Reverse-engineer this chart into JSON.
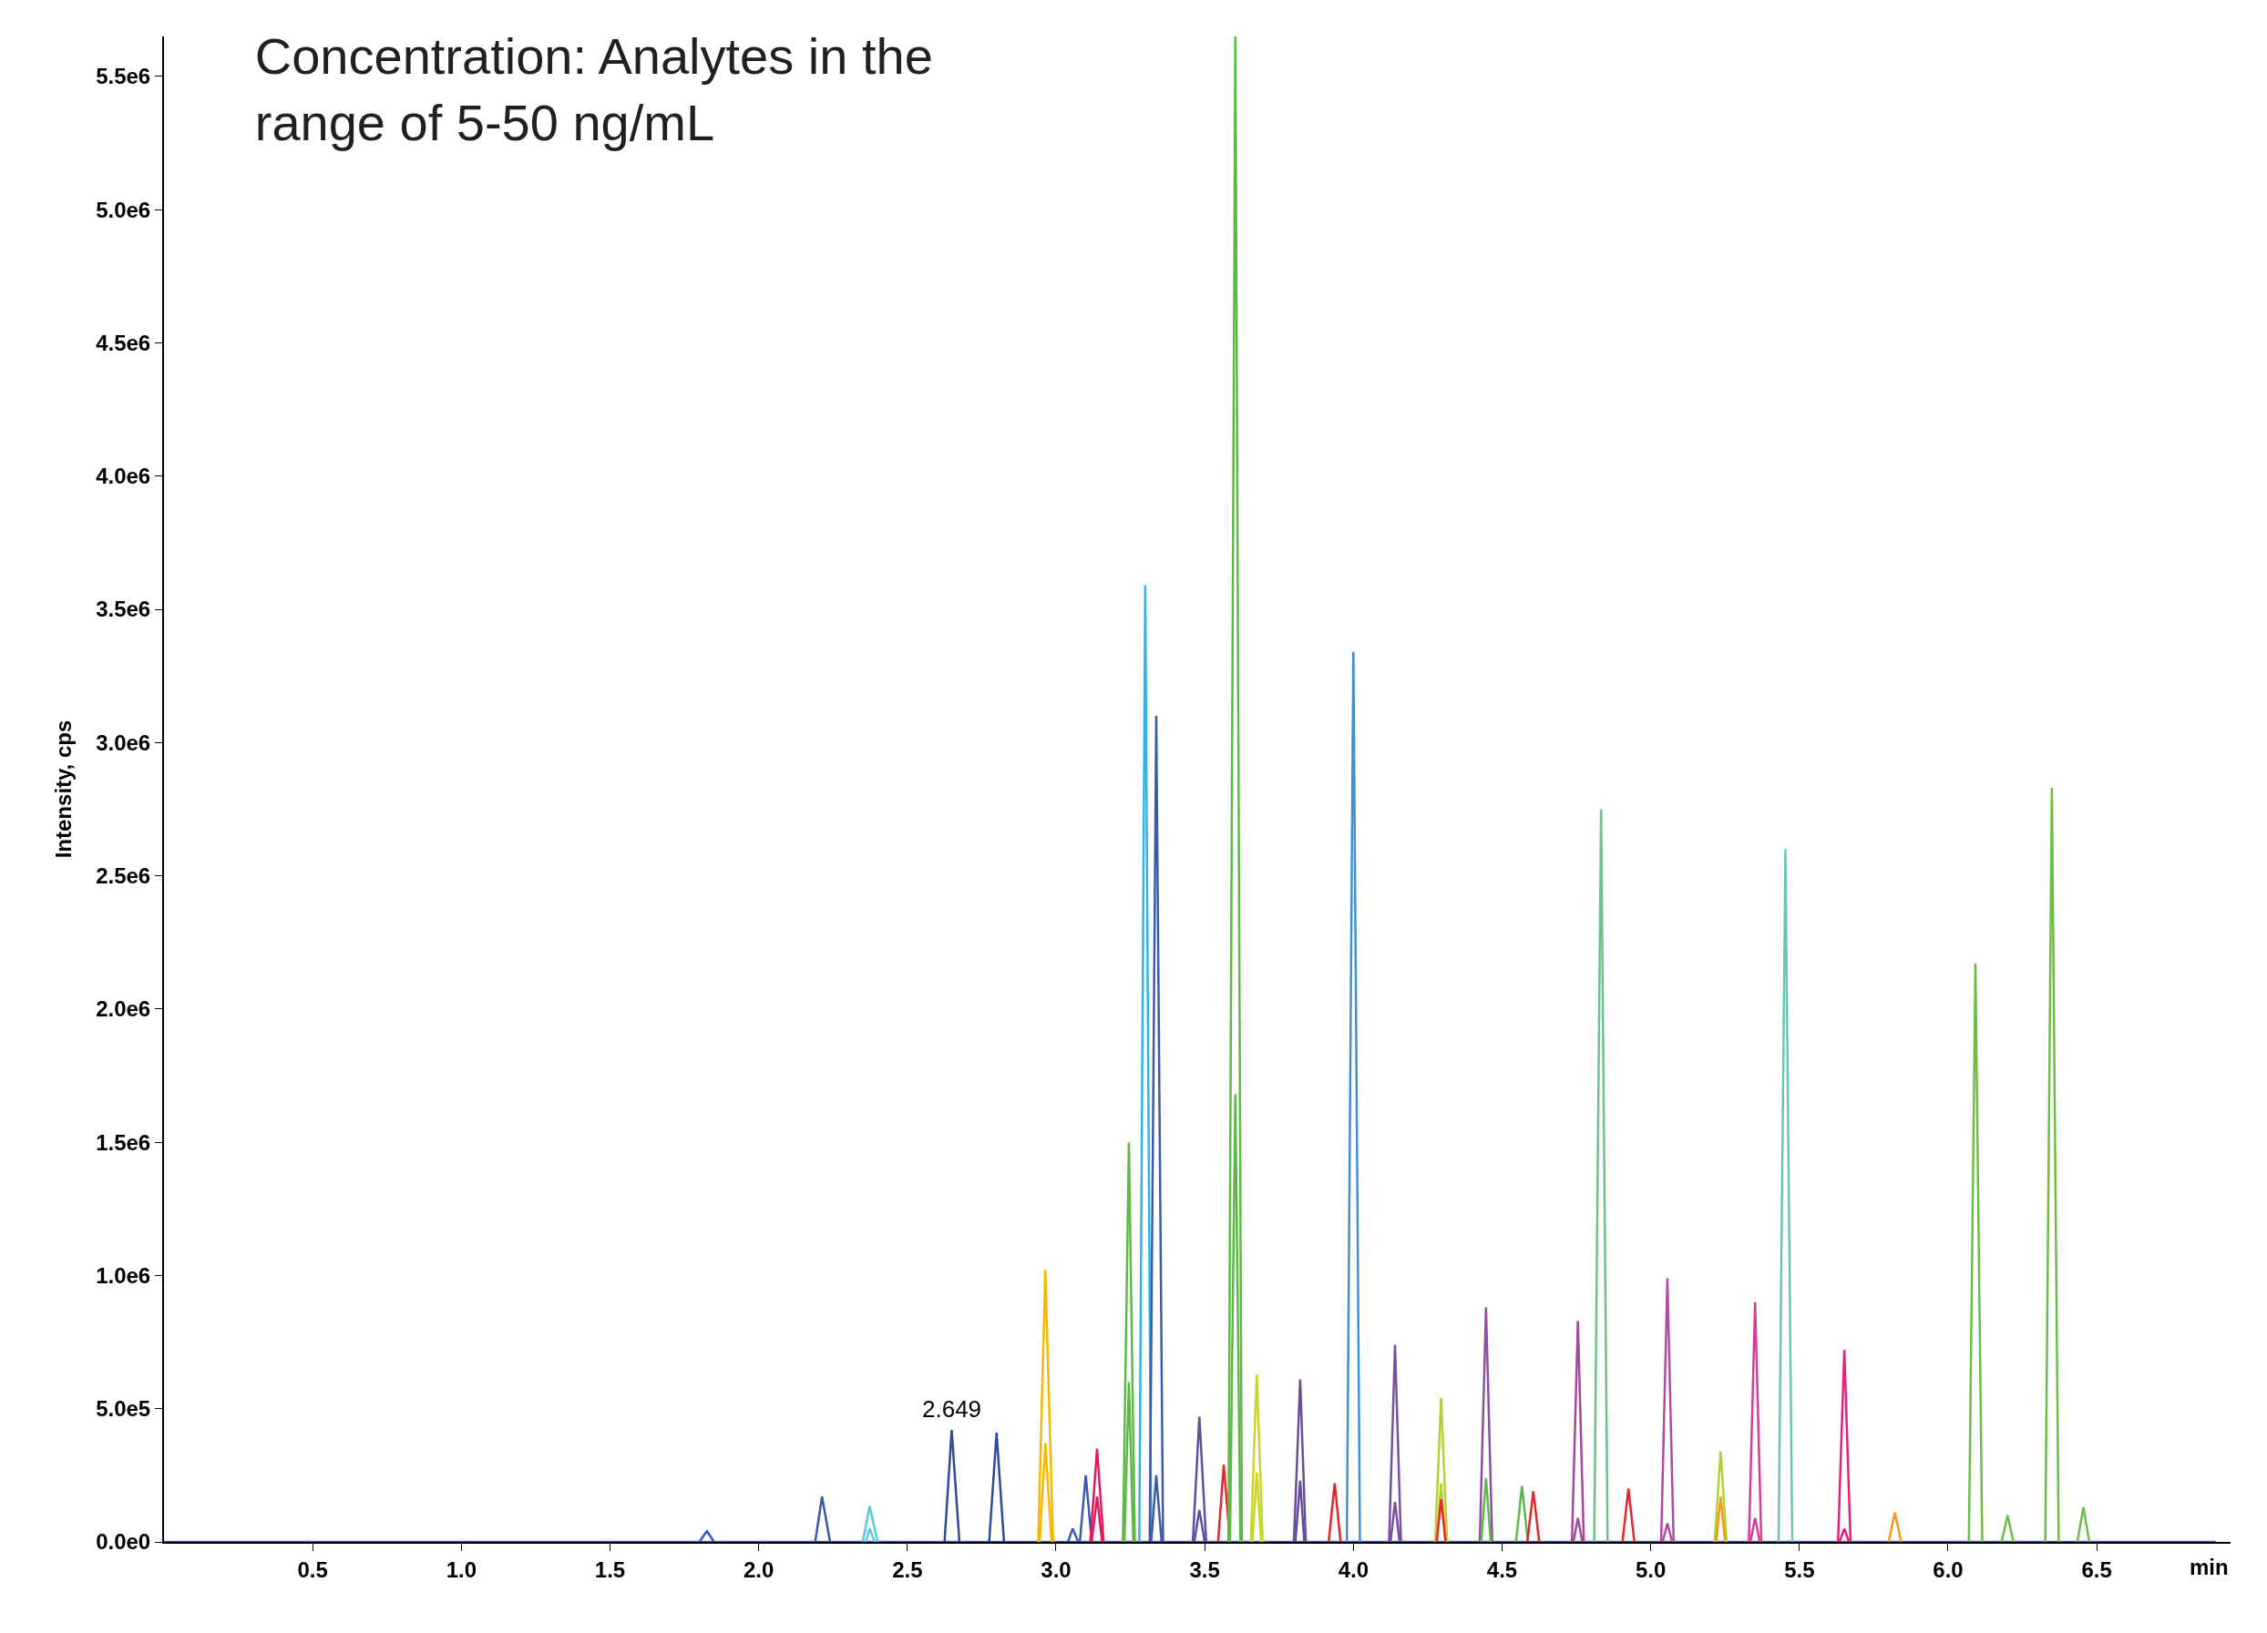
{
  "chart_data": {
    "type": "line",
    "title": "Concentration: Analytes in the\nrange of 5-50 ng/mL",
    "xlabel": "min",
    "ylabel": "Intensity, cps",
    "xlim": [
      0,
      6.95
    ],
    "ylim": [
      0,
      5650000
    ],
    "xticks": [
      0.5,
      {
        "value": 1,
        "label": "1.0"
      },
      1.5,
      {
        "value": 2,
        "label": "2.0"
      },
      2.5,
      {
        "value": 3,
        "label": "3.0"
      },
      3.5,
      {
        "value": 4,
        "label": "4.0"
      },
      4.5,
      {
        "value": 5,
        "label": "5.0"
      },
      5.5,
      {
        "value": 6,
        "label": "6.0"
      },
      6.5
    ],
    "yticks": [
      {
        "value": 0,
        "label": "0.0e0"
      },
      {
        "value": 500000,
        "label": "5.0e5"
      },
      {
        "value": 1000000,
        "label": "1.0e6"
      },
      {
        "value": 1500000,
        "label": "1.5e6"
      },
      {
        "value": 2000000,
        "label": "2.0e6"
      },
      {
        "value": 2500000,
        "label": "2.5e6"
      },
      {
        "value": 3000000,
        "label": "3.0e6"
      },
      {
        "value": 3500000,
        "label": "3.5e6"
      },
      {
        "value": 4000000,
        "label": "4.0e6"
      },
      {
        "value": 4500000,
        "label": "4.5e6"
      },
      {
        "value": 5000000,
        "label": "5.0e6"
      },
      {
        "value": 5500000,
        "label": "5.5e6"
      }
    ],
    "legend": false,
    "marker": "none",
    "line_style": "solid",
    "annotations": [
      {
        "text": "2.649",
        "x": 2.649,
        "y": 420000
      }
    ],
    "series": [
      {
        "color": "#3a5ba8",
        "x": [
          0,
          6.9
        ],
        "values": [
          0,
          0
        ]
      },
      {
        "color": "#3a5ba8",
        "x": [
          1.8,
          1.826,
          1.85
        ],
        "values": [
          0,
          40000,
          0
        ]
      },
      {
        "color": "#3a5ba8",
        "x": [
          2.19,
          2.213,
          2.24
        ],
        "values": [
          0,
          170000,
          0
        ]
      },
      {
        "color": "#5bc8e0",
        "x": [
          2.35,
          2.373,
          2.4
        ],
        "values": [
          0,
          135000,
          0
        ]
      },
      {
        "color": "#5bc8e0",
        "x": [
          2.36,
          2.373,
          2.39
        ],
        "values": [
          0,
          50000,
          0
        ]
      },
      {
        "color": "#2e4a9a",
        "x": [
          2.625,
          2.649,
          2.675
        ],
        "values": [
          0,
          420000,
          0
        ]
      },
      {
        "color": "#2e4a9a",
        "x": [
          2.775,
          2.8,
          2.825
        ],
        "values": [
          0,
          410000,
          0
        ]
      },
      {
        "color": "#f5b800",
        "x": [
          2.94,
          2.964,
          2.99
        ],
        "values": [
          0,
          1020000,
          0
        ]
      },
      {
        "color": "#f5b800",
        "x": [
          2.945,
          2.964,
          2.985
        ],
        "values": [
          0,
          370000,
          0
        ]
      },
      {
        "color": "#3a5ba8",
        "x": [
          3.04,
          3.056,
          3.075
        ],
        "values": [
          0,
          50000,
          0
        ]
      },
      {
        "color": "#3a5ba8",
        "x": [
          3.08,
          3.1,
          3.12
        ],
        "values": [
          0,
          250000,
          0
        ]
      },
      {
        "color": "#e8175d",
        "x": [
          3.115,
          3.138,
          3.16
        ],
        "values": [
          0,
          350000,
          0
        ]
      },
      {
        "color": "#e8175d",
        "x": [
          3.12,
          3.138,
          3.155
        ],
        "values": [
          0,
          170000,
          0
        ]
      },
      {
        "color": "#5db848",
        "x": [
          3.225,
          3.245,
          3.265
        ],
        "values": [
          0,
          1500000,
          0
        ]
      },
      {
        "color": "#5db848",
        "x": [
          3.23,
          3.245,
          3.26
        ],
        "values": [
          0,
          600000,
          0
        ]
      },
      {
        "color": "#29b5e8",
        "x": [
          3.28,
          3.3,
          3.32
        ],
        "values": [
          0,
          3590000,
          0
        ]
      },
      {
        "color": "#3c5aa8",
        "x": [
          3.315,
          3.337,
          3.36
        ],
        "values": [
          0,
          3100000,
          0
        ]
      },
      {
        "color": "#3c5aa8",
        "x": [
          3.32,
          3.337,
          3.355
        ],
        "values": [
          0,
          250000,
          0
        ]
      },
      {
        "color": "#5a4fa0",
        "x": [
          3.46,
          3.482,
          3.505
        ],
        "values": [
          0,
          470000,
          0
        ]
      },
      {
        "color": "#5a4fa0",
        "x": [
          3.465,
          3.482,
          3.5
        ],
        "values": [
          0,
          120000,
          0
        ]
      },
      {
        "color": "#e8252a",
        "x": [
          3.545,
          3.564,
          3.585
        ],
        "values": [
          0,
          290000,
          0
        ]
      },
      {
        "color": "#5db848",
        "x": [
          3.58,
          3.603,
          3.625
        ],
        "values": [
          0,
          5650000,
          0
        ]
      },
      {
        "color": "#5db848",
        "x": [
          3.585,
          3.603,
          3.62
        ],
        "values": [
          0,
          1680000,
          0
        ]
      },
      {
        "color": "#c8d62a",
        "x": [
          3.655,
          3.675,
          3.695
        ],
        "values": [
          0,
          630000,
          0
        ]
      },
      {
        "color": "#c8d62a",
        "x": [
          3.66,
          3.675,
          3.69
        ],
        "values": [
          0,
          260000,
          0
        ]
      },
      {
        "color": "#6a4c9c",
        "x": [
          3.8,
          3.821,
          3.84
        ],
        "values": [
          0,
          610000,
          0
        ]
      },
      {
        "color": "#6a4c9c",
        "x": [
          3.805,
          3.821,
          3.835
        ],
        "values": [
          0,
          230000,
          0
        ]
      },
      {
        "color": "#e8252a",
        "x": [
          3.917,
          3.937,
          3.957
        ],
        "values": [
          0,
          220000,
          0
        ]
      },
      {
        "color": "#3f8fd2",
        "x": [
          3.978,
          4.0,
          4.022
        ],
        "values": [
          0,
          3340000,
          0
        ]
      },
      {
        "color": "#7b4fa0",
        "x": [
          4.12,
          4.14,
          4.16
        ],
        "values": [
          0,
          740000,
          0
        ]
      },
      {
        "color": "#7b4fa0",
        "x": [
          4.125,
          4.14,
          4.155
        ],
        "values": [
          0,
          150000,
          0
        ]
      },
      {
        "color": "#b5cf35",
        "x": [
          4.275,
          4.295,
          4.315
        ],
        "values": [
          0,
          540000,
          0
        ]
      },
      {
        "color": "#b5cf35",
        "x": [
          4.28,
          4.295,
          4.31
        ],
        "values": [
          0,
          220000,
          0
        ]
      },
      {
        "color": "#e8252a",
        "x": [
          4.28,
          4.295,
          4.31
        ],
        "values": [
          0,
          160000,
          0
        ]
      },
      {
        "color": "#8e4fa1",
        "x": [
          4.425,
          4.446,
          4.467
        ],
        "values": [
          0,
          880000,
          0
        ]
      },
      {
        "color": "#5db848",
        "x": [
          4.43,
          4.446,
          4.462
        ],
        "values": [
          0,
          240000,
          0
        ]
      },
      {
        "color": "#5db848",
        "x": [
          4.547,
          4.567,
          4.587
        ],
        "values": [
          0,
          210000,
          0
        ]
      },
      {
        "color": "#e8252a",
        "x": [
          4.585,
          4.605,
          4.625
        ],
        "values": [
          0,
          190000,
          0
        ]
      },
      {
        "color": "#a4489c",
        "x": [
          4.735,
          4.755,
          4.775
        ],
        "values": [
          0,
          830000,
          0
        ]
      },
      {
        "color": "#a4489c",
        "x": [
          4.74,
          4.755,
          4.77
        ],
        "values": [
          0,
          90000,
          0
        ]
      },
      {
        "color": "#6ec08f",
        "x": [
          4.81,
          4.833,
          4.855
        ],
        "values": [
          0,
          2750000,
          0
        ]
      },
      {
        "color": "#e8252a",
        "x": [
          4.905,
          4.925,
          4.945
        ],
        "values": [
          0,
          200000,
          0
        ]
      },
      {
        "color": "#b04c9f",
        "x": [
          5.035,
          5.056,
          5.077
        ],
        "values": [
          0,
          990000,
          0
        ]
      },
      {
        "color": "#b04c9f",
        "x": [
          5.04,
          5.056,
          5.072
        ],
        "values": [
          0,
          70000,
          0
        ]
      },
      {
        "color": "#b5cf35",
        "x": [
          5.215,
          5.235,
          5.255
        ],
        "values": [
          0,
          340000,
          0
        ]
      },
      {
        "color": "#f39a1e",
        "x": [
          5.22,
          5.235,
          5.25
        ],
        "values": [
          0,
          170000,
          0
        ]
      },
      {
        "color": "#d63c98",
        "x": [
          5.33,
          5.351,
          5.372
        ],
        "values": [
          0,
          900000,
          0
        ]
      },
      {
        "color": "#d63c98",
        "x": [
          5.335,
          5.351,
          5.367
        ],
        "values": [
          0,
          90000,
          0
        ]
      },
      {
        "color": "#6cc4b7",
        "x": [
          5.43,
          5.453,
          5.476
        ],
        "values": [
          0,
          2600000,
          0
        ]
      },
      {
        "color": "#e5207e",
        "x": [
          5.63,
          5.651,
          5.672
        ],
        "values": [
          0,
          720000,
          0
        ]
      },
      {
        "color": "#e5207e",
        "x": [
          5.635,
          5.651,
          5.667
        ],
        "values": [
          0,
          50000,
          0
        ]
      },
      {
        "color": "#f39a1e",
        "x": [
          5.8,
          5.821,
          5.842
        ],
        "values": [
          0,
          110000,
          0
        ]
      },
      {
        "color": "#6cbc45",
        "x": [
          6.07,
          6.092,
          6.115
        ],
        "values": [
          0,
          2170000,
          0
        ]
      },
      {
        "color": "#6cbc45",
        "x": [
          6.18,
          6.2,
          6.22
        ],
        "values": [
          0,
          100000,
          0
        ]
      },
      {
        "color": "#6cbc45",
        "x": [
          6.327,
          6.349,
          6.372
        ],
        "values": [
          0,
          2830000,
          0
        ]
      },
      {
        "color": "#6cbc45",
        "x": [
          6.435,
          6.455,
          6.475
        ],
        "values": [
          0,
          130000,
          0
        ]
      }
    ]
  }
}
